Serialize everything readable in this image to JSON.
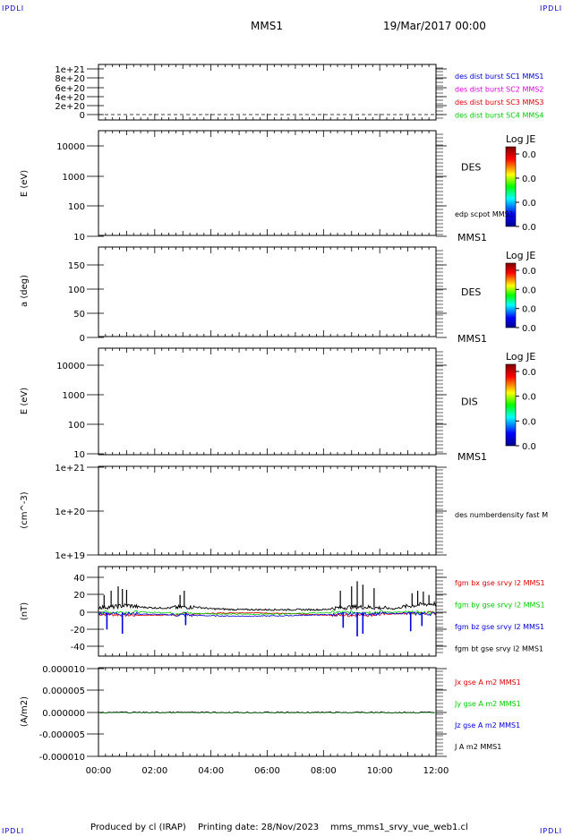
{
  "header": {
    "corner_tl": "IPDLI",
    "corner_tr": "IPDLI",
    "corner_bl": "IPDLI",
    "corner_br": "IPDLI",
    "title": "MMS1",
    "datetime": "19/Mar/2017 00:00"
  },
  "footer": {
    "produced": "Produced by cl (IRAP)",
    "printing": "Printing date: 28/Nov/2023",
    "script": "mms_mms1_srvy_vue_web1.cl"
  },
  "colors": {
    "blue": "#0000dd",
    "magenta": "#dd00dd",
    "red": "#dd0000",
    "green": "#00cc00",
    "black": "#000000"
  },
  "time_axis": [
    "00:00",
    "02:00",
    "04:00",
    "06:00",
    "08:00",
    "10:00",
    "12:00"
  ],
  "chart_data": [
    {
      "type": "line",
      "id": "panel1",
      "ylabel": "",
      "ticks": [
        "1e+21",
        "8e+20",
        "6e+20",
        "4e+20",
        "2e+20",
        "0"
      ],
      "ylim": [
        0,
        1e+21
      ],
      "series": [
        {
          "name": "des dist burst SC1 MMS1",
          "color": "#0000dd",
          "values": [
            0,
            0
          ]
        },
        {
          "name": "des dist burst SC2 MMS2",
          "color": "#dd00dd",
          "values": [
            0,
            0
          ]
        },
        {
          "name": "des dist burst SC3 MMS3",
          "color": "#dd0000",
          "values": [
            0,
            0
          ]
        },
        {
          "name": "des dist burst SC4 MMS4",
          "color": "#00cc00",
          "values": [
            0,
            0
          ]
        }
      ]
    },
    {
      "type": "heatmap",
      "id": "panel2",
      "ylabel": "E (eV)",
      "ticks": [
        "10000",
        "1000",
        "100",
        "10"
      ],
      "scale": "log",
      "label": "DES",
      "extra": "edp scpot MMS1",
      "bottom": "MMS1",
      "colorbar": {
        "title": "Log JE",
        "ticks": [
          "0.0",
          "0.0",
          "0.0",
          "0.0"
        ]
      }
    },
    {
      "type": "heatmap",
      "id": "panel3",
      "ylabel": "a (deg)",
      "ticks": [
        "150",
        "100",
        "50",
        "0"
      ],
      "label": "DES",
      "bottom": "MMS1",
      "colorbar": {
        "title": "Log JE",
        "ticks": [
          "0.0",
          "0.0",
          "0.0",
          "0.0"
        ]
      }
    },
    {
      "type": "heatmap",
      "id": "panel4",
      "ylabel": "E (eV)",
      "ticks": [
        "10000",
        "1000",
        "100",
        "10"
      ],
      "scale": "log",
      "label": "DIS",
      "bottom": "MMS1",
      "colorbar": {
        "title": "Log JE",
        "ticks": [
          "0.0",
          "0.0",
          "0.0",
          "0.0"
        ]
      }
    },
    {
      "type": "line",
      "id": "panel5",
      "ylabel": "(cm^-3)",
      "ticks": [
        "1e+21",
        "1e+20",
        "1e+19"
      ],
      "scale": "log",
      "series": [
        {
          "name": "des numberdensity fast M",
          "color": "#000000"
        }
      ]
    },
    {
      "type": "line",
      "id": "panel6",
      "ylabel": "(nT)",
      "ticks": [
        "40",
        "20",
        "0",
        "-20",
        "-40"
      ],
      "ylim": [
        -50,
        50
      ],
      "series": [
        {
          "name": "fgm bx gse srvy l2 MMS1",
          "color": "#dd0000"
        },
        {
          "name": "fgm by gse srvy l2 MMS1",
          "color": "#00cc00"
        },
        {
          "name": "fgm bz gse srvy l2 MMS1",
          "color": "#0000dd"
        },
        {
          "name": "fgm bt gse srvy l2 MMS1",
          "color": "#000000"
        }
      ],
      "bt_profile": {
        "hours": [
          0,
          0.5,
          1,
          1.5,
          2,
          2.5,
          3,
          3.5,
          4,
          5,
          6,
          7,
          8,
          8.5,
          9,
          9.5,
          10,
          10.5,
          11,
          11.5,
          12
        ],
        "values": [
          6,
          6,
          8,
          6,
          5,
          5,
          6,
          6,
          4,
          3,
          3,
          3,
          3,
          5,
          6,
          6,
          5,
          4,
          7,
          9,
          10
        ]
      },
      "spikes": {
        "hours": [
          0.2,
          0.45,
          0.7,
          0.85,
          1.0,
          2.9,
          3.05,
          8.6,
          9.0,
          9.2,
          9.4,
          9.8,
          11.15,
          11.35,
          11.55,
          11.75
        ],
        "values": [
          20,
          25,
          30,
          27,
          26,
          20,
          25,
          25,
          30,
          36,
          32,
          28,
          22,
          25,
          24,
          20
        ]
      },
      "dips": {
        "hours": [
          0.3,
          0.85,
          3.1,
          8.7,
          9.2,
          9.4,
          11.1,
          11.5
        ],
        "values": [
          -20,
          -25,
          -15,
          -18,
          -28,
          -25,
          -22,
          -16
        ]
      }
    },
    {
      "type": "line",
      "id": "panel7",
      "ylabel": "(A/m2)",
      "ticks": [
        "0.000010",
        "0.000005",
        "0.000000",
        "-0.000005",
        "-0.000010"
      ],
      "ylim": [
        -1e-05,
        1e-05
      ],
      "series": [
        {
          "name": "Jx gse A m2 MMS1",
          "color": "#dd0000"
        },
        {
          "name": "Jy gse A m2 MMS1",
          "color": "#00cc00"
        },
        {
          "name": "Jz gse A m2 MMS1",
          "color": "#0000dd"
        },
        {
          "name": "J A m2 MMS1",
          "color": "#000000"
        }
      ]
    }
  ]
}
